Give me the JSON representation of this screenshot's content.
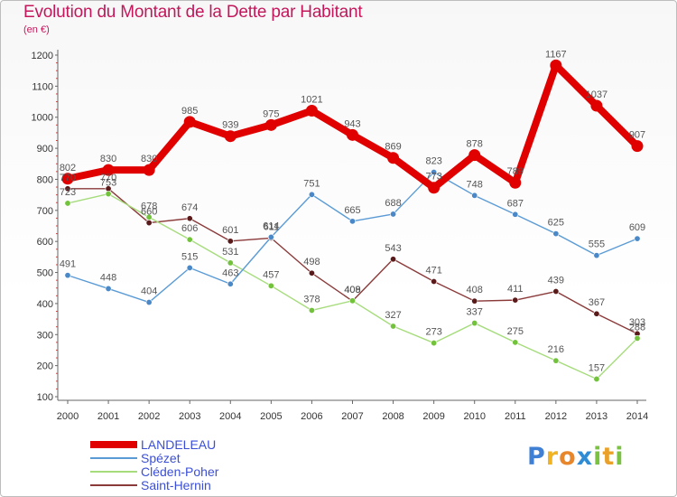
{
  "title": "Evolution du Montant de la Dette par Habitant",
  "subtitle": "(en €)",
  "logo": {
    "text": "Proxiti",
    "letters": [
      {
        "ch": "P",
        "color": "#3f7fd4"
      },
      {
        "ch": "r",
        "color": "#f0b323"
      },
      {
        "ch": "o",
        "color": "#e8862b"
      },
      {
        "ch": "x",
        "color": "#2e8bd4"
      },
      {
        "ch": "i",
        "color": "#7cc242"
      },
      {
        "ch": "t",
        "color": "#e9a12a"
      },
      {
        "ch": "i",
        "color": "#7cc242"
      }
    ]
  },
  "chart_data": {
    "type": "line",
    "title": "Evolution du Montant de la Dette par Habitant",
    "ylabel": "(en €)",
    "xlabel": "",
    "x": [
      "2000",
      "2001",
      "2002",
      "2003",
      "2004",
      "2005",
      "2006",
      "2007",
      "2008",
      "2009",
      "2010",
      "2011",
      "2012",
      "2013",
      "2014"
    ],
    "ylim": [
      100,
      1200
    ],
    "yticks": [
      100,
      200,
      300,
      400,
      500,
      600,
      700,
      800,
      900,
      1000,
      1100,
      1200
    ],
    "grid": false,
    "legend": "bottom",
    "series": [
      {
        "name": "LANDELEAU",
        "color": "#e00000",
        "marker_color": "#e00000",
        "values": [
          802,
          830,
          830,
          985,
          939,
          975,
          1021,
          943,
          869,
          773,
          878,
          789,
          1167,
          1037,
          907
        ]
      },
      {
        "name": "Spézet",
        "color": "#5a9bd5",
        "marker_color": "#4a88c8",
        "values": [
          491,
          448,
          404,
          515,
          463,
          614,
          751,
          665,
          688,
          823,
          748,
          687,
          625,
          555,
          609
        ]
      },
      {
        "name": "Cléden-Poher",
        "color": "#a6dc7c",
        "marker_color": "#72c23c",
        "values": [
          723,
          753,
          678,
          606,
          531,
          457,
          378,
          409,
          327,
          273,
          337,
          275,
          216,
          157,
          288
        ]
      },
      {
        "name": "Saint-Hernin",
        "color": "#8b3a3a",
        "marker_color": "#5a1a1a",
        "values": [
          770,
          770,
          660,
          674,
          601,
          611,
          498,
          408,
          543,
          471,
          408,
          411,
          439,
          367,
          303
        ]
      }
    ]
  }
}
